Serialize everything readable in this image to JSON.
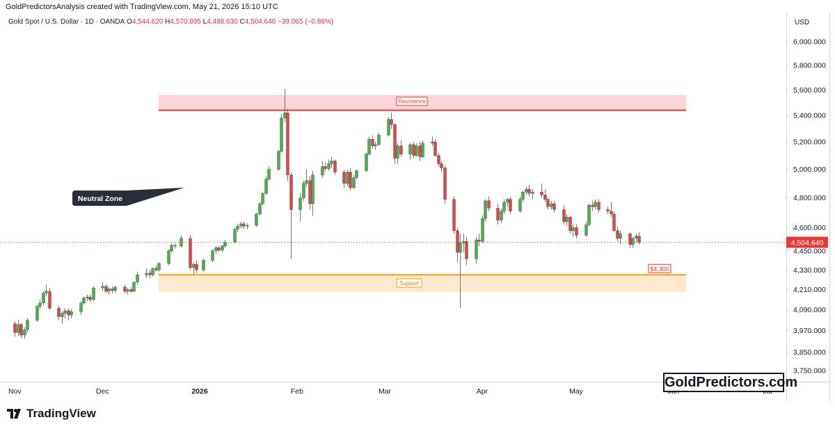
{
  "credit": "GoldPredictorsAnalysis created with TradingView.com, May 21, 2026 15:10 UTC",
  "header": {
    "symbol": "Gold Spot / U.S. Dollar · 1D · OANDA",
    "open_label": "O",
    "open": "4,544.620",
    "high_label": "H",
    "high": "4,570.895",
    "low_label": "L",
    "low": "4,488.630",
    "close_label": "C",
    "close": "4,504.640",
    "change": "−39.065 (−0.86%)"
  },
  "currency": "USD",
  "brand_box": "GoldPredictors.com",
  "tradingview_logo": "TradingView",
  "colors": {
    "up": "#26a69a",
    "up_fill": "#4caf50",
    "down": "#e0464f",
    "resistance_line": "#e53935",
    "resistance_fill": "#fbd5d8",
    "support_line": "#f59e0b",
    "support_fill": "#fde9cf",
    "last_price": "#e53935",
    "callout": "#2a2e39"
  },
  "chart_data": {
    "type": "candlestick",
    "y_scale": "log",
    "ylim": [
      3700,
      6100
    ],
    "y_ticks": [
      "6,000.000",
      "5,800.000",
      "5,600.000",
      "5,400.000",
      "5,200.000",
      "5,000.000",
      "4,800.000",
      "4,600.000",
      "4,450.000",
      "4,330.000",
      "4,210.000",
      "4,090.000",
      "3,970.000",
      "3,850.000",
      "3,750.000"
    ],
    "y_tick_values": [
      6000,
      5800,
      5600,
      5400,
      5200,
      5000,
      4800,
      4600,
      4450,
      4330,
      4210,
      4090,
      3970,
      3850,
      3750
    ],
    "x_ticks": [
      "Nov",
      "Dec",
      "2026",
      "Feb",
      "Mar",
      "Apr",
      "May",
      "Jun",
      "Jul"
    ],
    "x_tick_dates": [
      "2025-11-01",
      "2025-12-01",
      "2026-01-01",
      "2026-02-01",
      "2026-03-01",
      "2026-04-01",
      "2026-05-01",
      "2026-06-01",
      "2026-07-01"
    ],
    "x_range": [
      "2025-11-01",
      "2026-07-01"
    ],
    "last_price": 4504.64,
    "last_price_label": "4,504.640",
    "resistance": {
      "label": "Resistance",
      "line": 5440,
      "zone": [
        5440,
        5560
      ]
    },
    "support": {
      "label": "Support",
      "line": 4300,
      "zone": [
        4195,
        4300
      ],
      "price_tag": "$4,300"
    },
    "callout": {
      "label": "Neutral Zone",
      "date": "2025-12-20",
      "price": 4880
    },
    "candles": [
      {
        "d": "2025-11-03",
        "o": 4010,
        "h": 4025,
        "l": 3935,
        "c": 3960
      },
      {
        "d": "2025-11-04",
        "o": 3960,
        "h": 4030,
        "l": 3940,
        "c": 4005
      },
      {
        "d": "2025-11-05",
        "o": 4005,
        "h": 4015,
        "l": 3930,
        "c": 3945
      },
      {
        "d": "2025-11-06",
        "o": 3945,
        "h": 3990,
        "l": 3925,
        "c": 3975
      },
      {
        "d": "2025-11-07",
        "o": 3975,
        "h": 4040,
        "l": 3960,
        "c": 4030
      },
      {
        "d": "2025-11-10",
        "o": 4030,
        "h": 4120,
        "l": 4020,
        "c": 4110
      },
      {
        "d": "2025-11-11",
        "o": 4110,
        "h": 4150,
        "l": 4095,
        "c": 4130
      },
      {
        "d": "2025-11-12",
        "o": 4130,
        "h": 4200,
        "l": 4115,
        "c": 4190
      },
      {
        "d": "2025-11-13",
        "o": 4190,
        "h": 4240,
        "l": 4170,
        "c": 4200
      },
      {
        "d": "2025-11-14",
        "o": 4200,
        "h": 4220,
        "l": 4090,
        "c": 4100
      },
      {
        "d": "2025-11-17",
        "o": 4100,
        "h": 4115,
        "l": 4030,
        "c": 4050
      },
      {
        "d": "2025-11-18",
        "o": 4050,
        "h": 4080,
        "l": 4010,
        "c": 4070
      },
      {
        "d": "2025-11-19",
        "o": 4070,
        "h": 4100,
        "l": 4040,
        "c": 4085
      },
      {
        "d": "2025-11-20",
        "o": 4085,
        "h": 4100,
        "l": 4030,
        "c": 4060
      },
      {
        "d": "2025-11-21",
        "o": 4060,
        "h": 4095,
        "l": 4040,
        "c": 4080
      },
      {
        "d": "2025-11-24",
        "o": 4080,
        "h": 4140,
        "l": 4060,
        "c": 4130
      },
      {
        "d": "2025-11-25",
        "o": 4130,
        "h": 4170,
        "l": 4120,
        "c": 4160
      },
      {
        "d": "2025-11-26",
        "o": 4160,
        "h": 4180,
        "l": 4140,
        "c": 4165
      },
      {
        "d": "2025-11-27",
        "o": 4165,
        "h": 4180,
        "l": 4135,
        "c": 4150
      },
      {
        "d": "2025-11-28",
        "o": 4150,
        "h": 4230,
        "l": 4140,
        "c": 4220
      },
      {
        "d": "2025-12-01",
        "o": 4220,
        "h": 4255,
        "l": 4200,
        "c": 4230
      },
      {
        "d": "2025-12-02",
        "o": 4230,
        "h": 4240,
        "l": 4190,
        "c": 4200
      },
      {
        "d": "2025-12-03",
        "o": 4200,
        "h": 4225,
        "l": 4180,
        "c": 4215
      },
      {
        "d": "2025-12-04",
        "o": 4215,
        "h": 4230,
        "l": 4185,
        "c": 4205
      },
      {
        "d": "2025-12-05",
        "o": 4205,
        "h": 4235,
        "l": 4190,
        "c": 4225
      },
      {
        "d": "2025-12-08",
        "o": 4225,
        "h": 4240,
        "l": 4185,
        "c": 4200
      },
      {
        "d": "2025-12-09",
        "o": 4200,
        "h": 4220,
        "l": 4180,
        "c": 4210
      },
      {
        "d": "2025-12-10",
        "o": 4210,
        "h": 4225,
        "l": 4190,
        "c": 4200
      },
      {
        "d": "2025-12-11",
        "o": 4200,
        "h": 4260,
        "l": 4195,
        "c": 4255
      },
      {
        "d": "2025-12-12",
        "o": 4255,
        "h": 4320,
        "l": 4240,
        "c": 4300
      },
      {
        "d": "2025-12-15",
        "o": 4300,
        "h": 4340,
        "l": 4280,
        "c": 4310
      },
      {
        "d": "2025-12-16",
        "o": 4310,
        "h": 4330,
        "l": 4280,
        "c": 4300
      },
      {
        "d": "2025-12-17",
        "o": 4300,
        "h": 4345,
        "l": 4290,
        "c": 4340
      },
      {
        "d": "2025-12-18",
        "o": 4340,
        "h": 4360,
        "l": 4320,
        "c": 4330
      },
      {
        "d": "2025-12-19",
        "o": 4330,
        "h": 4380,
        "l": 4320,
        "c": 4370
      },
      {
        "d": "2025-12-22",
        "o": 4370,
        "h": 4460,
        "l": 4360,
        "c": 4450
      },
      {
        "d": "2025-12-23",
        "o": 4450,
        "h": 4500,
        "l": 4440,
        "c": 4485
      },
      {
        "d": "2025-12-24",
        "o": 4485,
        "h": 4500,
        "l": 4465,
        "c": 4480
      },
      {
        "d": "2025-12-26",
        "o": 4480,
        "h": 4550,
        "l": 4470,
        "c": 4530
      },
      {
        "d": "2025-12-29",
        "o": 4530,
        "h": 4550,
        "l": 4330,
        "c": 4345
      },
      {
        "d": "2025-12-30",
        "o": 4345,
        "h": 4380,
        "l": 4300,
        "c": 4365
      },
      {
        "d": "2025-12-31",
        "o": 4365,
        "h": 4390,
        "l": 4310,
        "c": 4330
      },
      {
        "d": "2026-01-02",
        "o": 4330,
        "h": 4400,
        "l": 4320,
        "c": 4390
      },
      {
        "d": "2026-01-05",
        "o": 4390,
        "h": 4460,
        "l": 4380,
        "c": 4450
      },
      {
        "d": "2026-01-06",
        "o": 4450,
        "h": 4480,
        "l": 4430,
        "c": 4470
      },
      {
        "d": "2026-01-07",
        "o": 4470,
        "h": 4480,
        "l": 4440,
        "c": 4455
      },
      {
        "d": "2026-01-08",
        "o": 4455,
        "h": 4490,
        "l": 4440,
        "c": 4480
      },
      {
        "d": "2026-01-09",
        "o": 4480,
        "h": 4520,
        "l": 4470,
        "c": 4505
      },
      {
        "d": "2026-01-12",
        "o": 4505,
        "h": 4600,
        "l": 4500,
        "c": 4590
      },
      {
        "d": "2026-01-13",
        "o": 4590,
        "h": 4625,
        "l": 4570,
        "c": 4610
      },
      {
        "d": "2026-01-14",
        "o": 4610,
        "h": 4640,
        "l": 4595,
        "c": 4625
      },
      {
        "d": "2026-01-15",
        "o": 4625,
        "h": 4640,
        "l": 4590,
        "c": 4610
      },
      {
        "d": "2026-01-16",
        "o": 4610,
        "h": 4630,
        "l": 4590,
        "c": 4615
      },
      {
        "d": "2026-01-19",
        "o": 4615,
        "h": 4700,
        "l": 4605,
        "c": 4690
      },
      {
        "d": "2026-01-20",
        "o": 4690,
        "h": 4770,
        "l": 4680,
        "c": 4760
      },
      {
        "d": "2026-01-21",
        "o": 4760,
        "h": 4840,
        "l": 4750,
        "c": 4830
      },
      {
        "d": "2026-01-22",
        "o": 4830,
        "h": 4950,
        "l": 4820,
        "c": 4930
      },
      {
        "d": "2026-01-23",
        "o": 4930,
        "h": 5020,
        "l": 4920,
        "c": 5000
      },
      {
        "d": "2026-01-26",
        "o": 5000,
        "h": 5140,
        "l": 4990,
        "c": 5130
      },
      {
        "d": "2026-01-27",
        "o": 5130,
        "h": 5410,
        "l": 5120,
        "c": 5380
      },
      {
        "d": "2026-01-28",
        "o": 5380,
        "h": 5610,
        "l": 5350,
        "c": 5420
      },
      {
        "d": "2026-01-29",
        "o": 5420,
        "h": 5450,
        "l": 4920,
        "c": 4960
      },
      {
        "d": "2026-01-30",
        "o": 4960,
        "h": 4980,
        "l": 4400,
        "c": 4720
      },
      {
        "d": "2026-02-02",
        "o": 4720,
        "h": 4830,
        "l": 4640,
        "c": 4800
      },
      {
        "d": "2026-02-03",
        "o": 4800,
        "h": 4920,
        "l": 4780,
        "c": 4900
      },
      {
        "d": "2026-02-04",
        "o": 4900,
        "h": 5000,
        "l": 4880,
        "c": 4920
      },
      {
        "d": "2026-02-05",
        "o": 4920,
        "h": 4950,
        "l": 4720,
        "c": 4760
      },
      {
        "d": "2026-02-06",
        "o": 4760,
        "h": 4990,
        "l": 4680,
        "c": 4960
      },
      {
        "d": "2026-02-09",
        "o": 4960,
        "h": 5060,
        "l": 4940,
        "c": 5020
      },
      {
        "d": "2026-02-10",
        "o": 5020,
        "h": 5050,
        "l": 4990,
        "c": 5005
      },
      {
        "d": "2026-02-11",
        "o": 5005,
        "h": 5070,
        "l": 4990,
        "c": 5040
      },
      {
        "d": "2026-02-12",
        "o": 5040,
        "h": 5090,
        "l": 5010,
        "c": 5060
      },
      {
        "d": "2026-02-13",
        "o": 5060,
        "h": 5070,
        "l": 4960,
        "c": 4980
      },
      {
        "d": "2026-02-16",
        "o": 4980,
        "h": 5000,
        "l": 4870,
        "c": 4900
      },
      {
        "d": "2026-02-17",
        "o": 4900,
        "h": 5000,
        "l": 4880,
        "c": 4980
      },
      {
        "d": "2026-02-18",
        "o": 4980,
        "h": 5010,
        "l": 4850,
        "c": 4870
      },
      {
        "d": "2026-02-19",
        "o": 4870,
        "h": 4960,
        "l": 4860,
        "c": 4940
      },
      {
        "d": "2026-02-20",
        "o": 4940,
        "h": 5000,
        "l": 4930,
        "c": 4990
      },
      {
        "d": "2026-02-23",
        "o": 4990,
        "h": 5120,
        "l": 4980,
        "c": 5110
      },
      {
        "d": "2026-02-24",
        "o": 5110,
        "h": 5240,
        "l": 5100,
        "c": 5220
      },
      {
        "d": "2026-02-25",
        "o": 5220,
        "h": 5250,
        "l": 5150,
        "c": 5170
      },
      {
        "d": "2026-02-26",
        "o": 5170,
        "h": 5200,
        "l": 5140,
        "c": 5180
      },
      {
        "d": "2026-02-27",
        "o": 5180,
        "h": 5270,
        "l": 5170,
        "c": 5250
      },
      {
        "d": "2026-03-02",
        "o": 5250,
        "h": 5390,
        "l": 5240,
        "c": 5370
      },
      {
        "d": "2026-03-03",
        "o": 5370,
        "h": 5420,
        "l": 5300,
        "c": 5330
      },
      {
        "d": "2026-03-04",
        "o": 5330,
        "h": 5340,
        "l": 5040,
        "c": 5080
      },
      {
        "d": "2026-03-05",
        "o": 5080,
        "h": 5190,
        "l": 5040,
        "c": 5170
      },
      {
        "d": "2026-03-06",
        "o": 5170,
        "h": 5210,
        "l": 5090,
        "c": 5110
      },
      {
        "d": "2026-03-09",
        "o": 5110,
        "h": 5190,
        "l": 5070,
        "c": 5180
      },
      {
        "d": "2026-03-10",
        "o": 5180,
        "h": 5200,
        "l": 5080,
        "c": 5100
      },
      {
        "d": "2026-03-11",
        "o": 5100,
        "h": 5190,
        "l": 5090,
        "c": 5170
      },
      {
        "d": "2026-03-12",
        "o": 5170,
        "h": 5200,
        "l": 5060,
        "c": 5090
      },
      {
        "d": "2026-03-13",
        "o": 5090,
        "h": 5210,
        "l": 5080,
        "c": 5190
      },
      {
        "d": "2026-03-16",
        "o": 5190,
        "h": 5240,
        "l": 5170,
        "c": 5200
      },
      {
        "d": "2026-03-17",
        "o": 5200,
        "h": 5220,
        "l": 5090,
        "c": 5100
      },
      {
        "d": "2026-03-18",
        "o": 5100,
        "h": 5120,
        "l": 5020,
        "c": 5040
      },
      {
        "d": "2026-03-19",
        "o": 5040,
        "h": 5060,
        "l": 4980,
        "c": 5010
      },
      {
        "d": "2026-03-20",
        "o": 5010,
        "h": 5030,
        "l": 4760,
        "c": 4790
      },
      {
        "d": "2026-03-23",
        "o": 4790,
        "h": 4810,
        "l": 4560,
        "c": 4580
      },
      {
        "d": "2026-03-24",
        "o": 4580,
        "h": 4600,
        "l": 4380,
        "c": 4440
      },
      {
        "d": "2026-03-25",
        "o": 4440,
        "h": 4560,
        "l": 4100,
        "c": 4500
      },
      {
        "d": "2026-03-26",
        "o": 4500,
        "h": 4560,
        "l": 4440,
        "c": 4510
      },
      {
        "d": "2026-03-27",
        "o": 4510,
        "h": 4540,
        "l": 4360,
        "c": 4400
      },
      {
        "d": "2026-03-30",
        "o": 4400,
        "h": 4540,
        "l": 4370,
        "c": 4520
      },
      {
        "d": "2026-03-31",
        "o": 4520,
        "h": 4560,
        "l": 4480,
        "c": 4510
      },
      {
        "d": "2026-04-01",
        "o": 4510,
        "h": 4680,
        "l": 4500,
        "c": 4660
      },
      {
        "d": "2026-04-02",
        "o": 4660,
        "h": 4790,
        "l": 4640,
        "c": 4780
      },
      {
        "d": "2026-04-03",
        "o": 4780,
        "h": 4810,
        "l": 4710,
        "c": 4730
      },
      {
        "d": "2026-04-06",
        "o": 4730,
        "h": 4760,
        "l": 4620,
        "c": 4650
      },
      {
        "d": "2026-04-07",
        "o": 4650,
        "h": 4730,
        "l": 4630,
        "c": 4710
      },
      {
        "d": "2026-04-08",
        "o": 4710,
        "h": 4790,
        "l": 4690,
        "c": 4770
      },
      {
        "d": "2026-04-09",
        "o": 4770,
        "h": 4800,
        "l": 4740,
        "c": 4790
      },
      {
        "d": "2026-04-10",
        "o": 4790,
        "h": 4810,
        "l": 4690,
        "c": 4710
      },
      {
        "d": "2026-04-13",
        "o": 4710,
        "h": 4810,
        "l": 4700,
        "c": 4790
      },
      {
        "d": "2026-04-14",
        "o": 4790,
        "h": 4850,
        "l": 4770,
        "c": 4840
      },
      {
        "d": "2026-04-15",
        "o": 4840,
        "h": 4880,
        "l": 4820,
        "c": 4860
      },
      {
        "d": "2026-04-16",
        "o": 4860,
        "h": 4890,
        "l": 4810,
        "c": 4830
      },
      {
        "d": "2026-04-17",
        "o": 4830,
        "h": 4860,
        "l": 4790,
        "c": 4840
      },
      {
        "d": "2026-04-20",
        "o": 4840,
        "h": 4900,
        "l": 4800,
        "c": 4820
      },
      {
        "d": "2026-04-21",
        "o": 4820,
        "h": 4860,
        "l": 4770,
        "c": 4790
      },
      {
        "d": "2026-04-22",
        "o": 4790,
        "h": 4800,
        "l": 4720,
        "c": 4740
      },
      {
        "d": "2026-04-23",
        "o": 4740,
        "h": 4780,
        "l": 4720,
        "c": 4760
      },
      {
        "d": "2026-04-24",
        "o": 4760,
        "h": 4780,
        "l": 4700,
        "c": 4720
      },
      {
        "d": "2026-04-27",
        "o": 4720,
        "h": 4750,
        "l": 4620,
        "c": 4640
      },
      {
        "d": "2026-04-28",
        "o": 4640,
        "h": 4690,
        "l": 4610,
        "c": 4670
      },
      {
        "d": "2026-04-29",
        "o": 4670,
        "h": 4680,
        "l": 4560,
        "c": 4580
      },
      {
        "d": "2026-04-30",
        "o": 4580,
        "h": 4620,
        "l": 4540,
        "c": 4600
      },
      {
        "d": "2026-05-01",
        "o": 4600,
        "h": 4620,
        "l": 4530,
        "c": 4550
      },
      {
        "d": "2026-05-04",
        "o": 4550,
        "h": 4640,
        "l": 4540,
        "c": 4620
      },
      {
        "d": "2026-05-05",
        "o": 4620,
        "h": 4760,
        "l": 4610,
        "c": 4750
      },
      {
        "d": "2026-05-06",
        "o": 4750,
        "h": 4780,
        "l": 4710,
        "c": 4740
      },
      {
        "d": "2026-05-07",
        "o": 4740,
        "h": 4790,
        "l": 4720,
        "c": 4770
      },
      {
        "d": "2026-05-08",
        "o": 4770,
        "h": 4790,
        "l": 4700,
        "c": 4720
      },
      {
        "d": "2026-05-11",
        "o": 4720,
        "h": 4740,
        "l": 4690,
        "c": 4710
      },
      {
        "d": "2026-05-12",
        "o": 4710,
        "h": 4770,
        "l": 4670,
        "c": 4690
      },
      {
        "d": "2026-05-13",
        "o": 4690,
        "h": 4710,
        "l": 4570,
        "c": 4580
      },
      {
        "d": "2026-05-14",
        "o": 4580,
        "h": 4610,
        "l": 4510,
        "c": 4530
      },
      {
        "d": "2026-05-15",
        "o": 4530,
        "h": 4580,
        "l": 4490,
        "c": 4560
      },
      {
        "d": "2026-05-18",
        "o": 4560,
        "h": 4570,
        "l": 4470,
        "c": 4490
      },
      {
        "d": "2026-05-19",
        "o": 4490,
        "h": 4540,
        "l": 4470,
        "c": 4530
      },
      {
        "d": "2026-05-20",
        "o": 4530,
        "h": 4560,
        "l": 4500,
        "c": 4544.62
      },
      {
        "d": "2026-05-21",
        "o": 4544.62,
        "h": 4570.895,
        "l": 4488.63,
        "c": 4504.64
      }
    ]
  }
}
